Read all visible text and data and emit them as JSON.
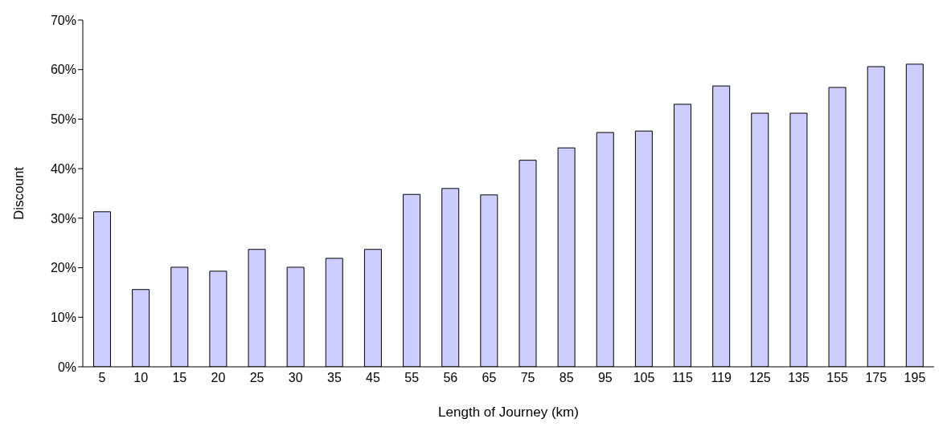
{
  "chart_data": {
    "type": "bar",
    "xlabel": "Length of Journey (km)",
    "ylabel": "Discount",
    "categories": [
      "5",
      "10",
      "15",
      "20",
      "25",
      "30",
      "35",
      "45",
      "55",
      "56",
      "65",
      "75",
      "85",
      "95",
      "105",
      "115",
      "119",
      "125",
      "135",
      "155",
      "175",
      "195"
    ],
    "values": [
      31.3,
      15.6,
      20.1,
      19.3,
      23.7,
      20.1,
      21.9,
      23.7,
      34.8,
      36,
      34.7,
      41.7,
      44.2,
      47.3,
      47.6,
      53,
      56.7,
      51.2,
      51.2,
      56.4,
      60.6,
      61.1
    ],
    "color": "#ccccff",
    "ylim": [
      0,
      70
    ],
    "yticks": [
      {
        "value": 0,
        "label": "0%"
      },
      {
        "value": 10,
        "label": "10%"
      },
      {
        "value": 20,
        "label": "20%"
      },
      {
        "value": 30,
        "label": "30%"
      },
      {
        "value": 40,
        "label": "40%"
      },
      {
        "value": 50,
        "label": "50%"
      },
      {
        "value": 60,
        "label": "60%"
      },
      {
        "value": 70,
        "label": "70%"
      }
    ],
    "grid": false,
    "legend": false
  }
}
